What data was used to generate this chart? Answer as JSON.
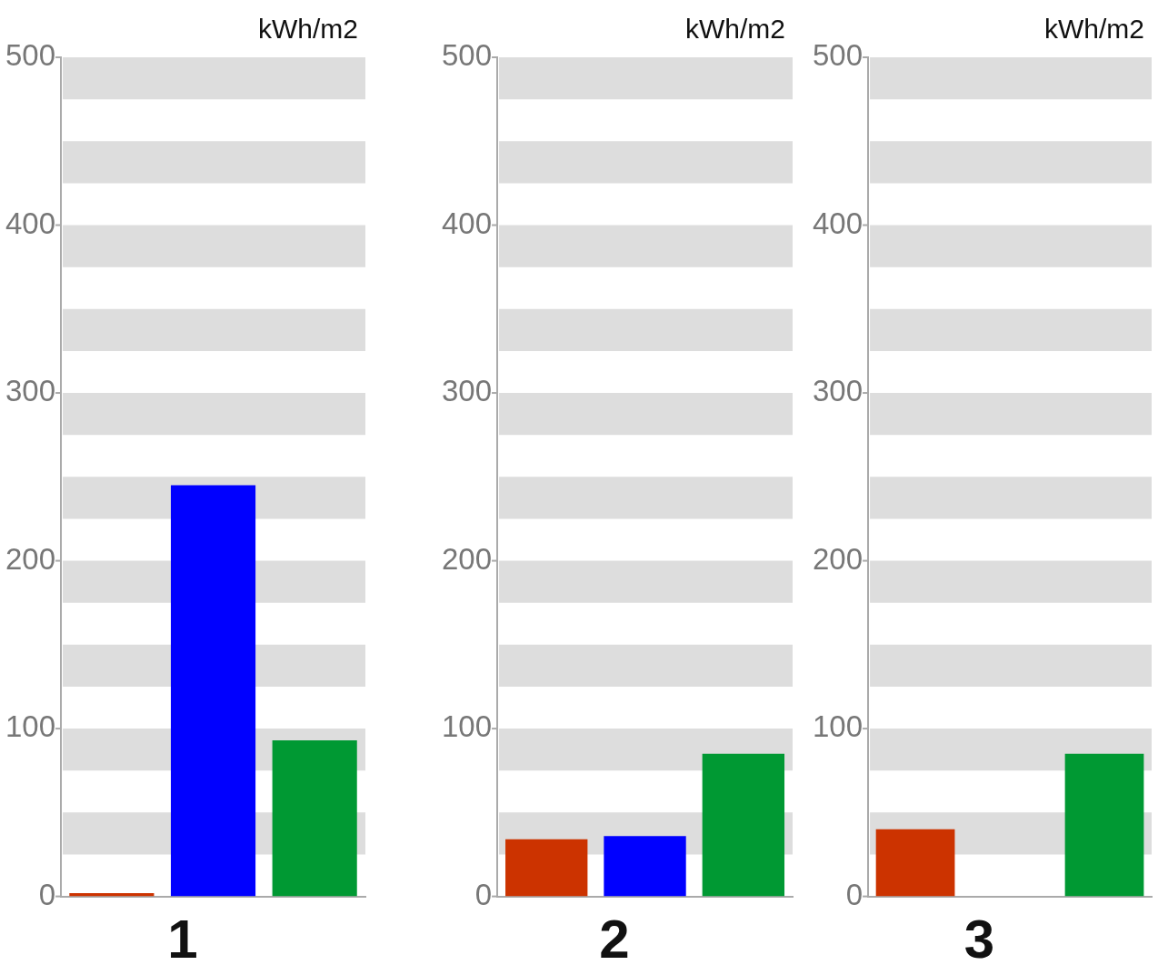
{
  "chart_data": [
    {
      "type": "bar",
      "title": "1",
      "ylabel": "kWh/m2",
      "categories": [
        null,
        null,
        null
      ],
      "values": [
        2,
        245,
        93
      ],
      "colors": [
        "#cc3300",
        "#0000ff",
        "#009933"
      ],
      "ylim": [
        0,
        500
      ],
      "yticks": [
        0,
        100,
        200,
        300,
        400,
        500
      ],
      "bands": [
        {
          "axis": "y",
          "from": 25,
          "to": 50,
          "color": "#dddddd"
        },
        {
          "axis": "y",
          "from": 75,
          "to": 100,
          "color": "#dddddd"
        },
        {
          "axis": "y",
          "from": 125,
          "to": 150,
          "color": "#dddddd"
        },
        {
          "axis": "y",
          "from": 175,
          "to": 200,
          "color": "#dddddd"
        },
        {
          "axis": "y",
          "from": 225,
          "to": 250,
          "color": "#dddddd"
        },
        {
          "axis": "y",
          "from": 275,
          "to": 300,
          "color": "#dddddd"
        },
        {
          "axis": "y",
          "from": 325,
          "to": 350,
          "color": "#dddddd"
        },
        {
          "axis": "y",
          "from": 375,
          "to": 400,
          "color": "#dddddd"
        },
        {
          "axis": "y",
          "from": 425,
          "to": 450,
          "color": "#dddddd"
        },
        {
          "axis": "y",
          "from": 475,
          "to": 500,
          "color": "#dddddd"
        }
      ]
    },
    {
      "type": "bar",
      "title": "2",
      "ylabel": "kWh/m2",
      "categories": [
        null,
        null,
        null
      ],
      "values": [
        34,
        36,
        85
      ],
      "colors": [
        "#cc3300",
        "#0000ff",
        "#009933"
      ],
      "ylim": [
        0,
        500
      ],
      "yticks": [
        0,
        100,
        200,
        300,
        400,
        500
      ],
      "bands": [
        {
          "axis": "y",
          "from": 25,
          "to": 50,
          "color": "#dddddd"
        },
        {
          "axis": "y",
          "from": 75,
          "to": 100,
          "color": "#dddddd"
        },
        {
          "axis": "y",
          "from": 125,
          "to": 150,
          "color": "#dddddd"
        },
        {
          "axis": "y",
          "from": 175,
          "to": 200,
          "color": "#dddddd"
        },
        {
          "axis": "y",
          "from": 225,
          "to": 250,
          "color": "#dddddd"
        },
        {
          "axis": "y",
          "from": 275,
          "to": 300,
          "color": "#dddddd"
        },
        {
          "axis": "y",
          "from": 325,
          "to": 350,
          "color": "#dddddd"
        },
        {
          "axis": "y",
          "from": 375,
          "to": 400,
          "color": "#dddddd"
        },
        {
          "axis": "y",
          "from": 425,
          "to": 450,
          "color": "#dddddd"
        },
        {
          "axis": "y",
          "from": 475,
          "to": 500,
          "color": "#dddddd"
        }
      ]
    },
    {
      "type": "bar",
      "title": "3",
      "ylabel": "kWh/m2",
      "categories": [
        null,
        null,
        null
      ],
      "values": [
        40,
        0,
        85
      ],
      "colors": [
        "#cc3300",
        "#0000ff",
        "#009933"
      ],
      "ylim": [
        0,
        500
      ],
      "yticks": [
        0,
        100,
        200,
        300,
        400,
        500
      ],
      "bands": [
        {
          "axis": "y",
          "from": 25,
          "to": 50,
          "color": "#dddddd"
        },
        {
          "axis": "y",
          "from": 75,
          "to": 100,
          "color": "#dddddd"
        },
        {
          "axis": "y",
          "from": 125,
          "to": 150,
          "color": "#dddddd"
        },
        {
          "axis": "y",
          "from": 175,
          "to": 200,
          "color": "#dddddd"
        },
        {
          "axis": "y",
          "from": 225,
          "to": 250,
          "color": "#dddddd"
        },
        {
          "axis": "y",
          "from": 275,
          "to": 300,
          "color": "#dddddd"
        },
        {
          "axis": "y",
          "from": 325,
          "to": 350,
          "color": "#dddddd"
        },
        {
          "axis": "y",
          "from": 375,
          "to": 400,
          "color": "#dddddd"
        },
        {
          "axis": "y",
          "from": 425,
          "to": 450,
          "color": "#dddddd"
        },
        {
          "axis": "y",
          "from": 475,
          "to": 500,
          "color": "#dddddd"
        }
      ]
    }
  ]
}
